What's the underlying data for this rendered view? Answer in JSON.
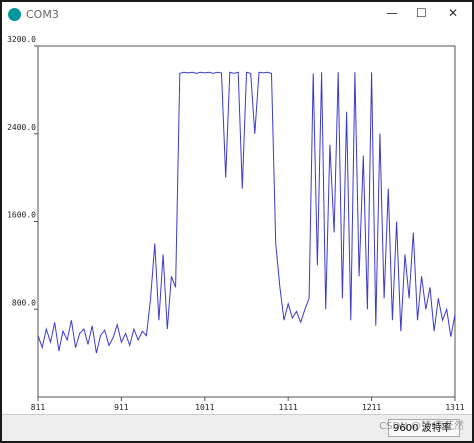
{
  "window": {
    "title": "COM3"
  },
  "status": {
    "baud": "9600 波特率",
    "watermark": "CSDN @梦·夜花然"
  },
  "chart_data": {
    "type": "line",
    "color": "#3b3bcc",
    "xlim": [
      811,
      1311
    ],
    "xticks": [
      811,
      911,
      1011,
      1111,
      1211,
      1311
    ],
    "ylim": [
      0,
      3200
    ],
    "yticks": [
      {
        "value": 800,
        "label": "800.0"
      },
      {
        "value": 1600,
        "label": "1600.0"
      },
      {
        "value": 2400,
        "label": "2400.0"
      },
      {
        "value": 3200,
        "label": "3200.0"
      }
    ],
    "x": [
      811,
      816,
      821,
      826,
      831,
      836,
      841,
      846,
      851,
      856,
      861,
      866,
      871,
      876,
      881,
      886,
      891,
      896,
      901,
      906,
      911,
      916,
      921,
      926,
      931,
      936,
      941,
      946,
      951,
      956,
      961,
      966,
      971,
      976,
      981,
      986,
      991,
      996,
      1001,
      1006,
      1011,
      1016,
      1021,
      1026,
      1031,
      1036,
      1041,
      1046,
      1051,
      1056,
      1061,
      1066,
      1071,
      1076,
      1081,
      1086,
      1091,
      1096,
      1101,
      1106,
      1111,
      1116,
      1121,
      1126,
      1131,
      1136,
      1141,
      1146,
      1151,
      1156,
      1161,
      1166,
      1171,
      1176,
      1181,
      1186,
      1191,
      1196,
      1201,
      1206,
      1211,
      1216,
      1221,
      1226,
      1231,
      1236,
      1241,
      1246,
      1251,
      1256,
      1261,
      1266,
      1271,
      1276,
      1281,
      1286,
      1291,
      1296,
      1301,
      1306,
      1311
    ],
    "values": [
      560,
      450,
      620,
      500,
      680,
      420,
      600,
      520,
      700,
      450,
      580,
      620,
      480,
      650,
      400,
      560,
      610,
      470,
      540,
      660,
      500,
      580,
      470,
      620,
      520,
      600,
      560,
      900,
      1400,
      700,
      1300,
      620,
      1100,
      1000,
      2950,
      2960,
      2955,
      2960,
      2950,
      2960,
      2955,
      2960,
      2950,
      2960,
      2955,
      2000,
      2960,
      2950,
      2960,
      1900,
      2960,
      2950,
      2400,
      2960,
      2955,
      2960,
      2950,
      1400,
      1000,
      700,
      850,
      720,
      780,
      680,
      800,
      900,
      2950,
      1200,
      2960,
      800,
      2300,
      1500,
      2960,
      900,
      2600,
      700,
      2960,
      1100,
      2200,
      800,
      2960,
      650,
      2400,
      900,
      1900,
      700,
      1600,
      600,
      1300,
      900,
      1500,
      700,
      1100,
      800,
      1000,
      600,
      900,
      700,
      800,
      550,
      750
    ]
  }
}
